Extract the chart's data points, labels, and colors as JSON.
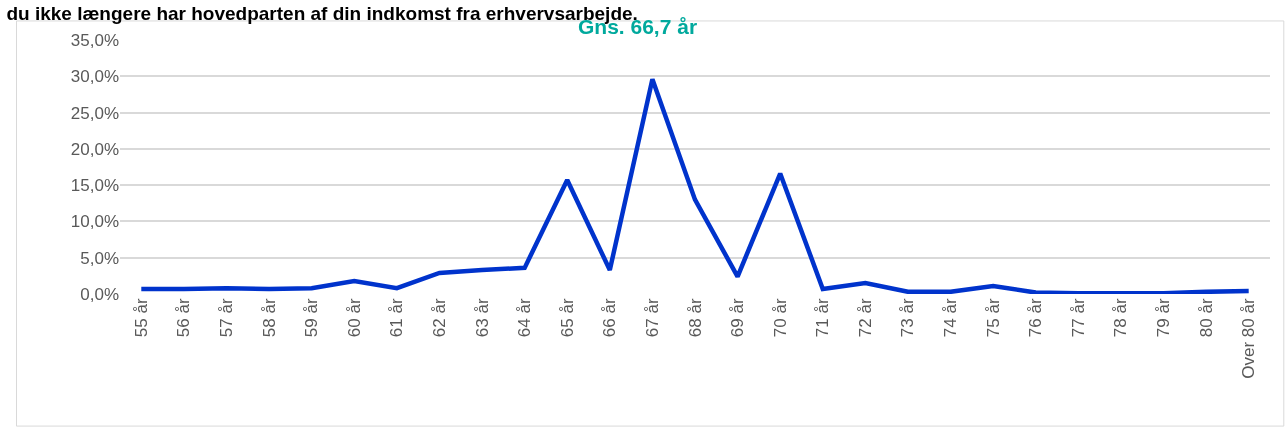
{
  "chart_data": {
    "type": "line",
    "title": "du ikke længere har hovedparten af din indkomst fra erhvervsarbejde.",
    "annotations": [
      "Gns. 66,7 år"
    ],
    "categories": [
      "55 år",
      "56 år",
      "57 år",
      "58 år",
      "59 år",
      "60 år",
      "61 år",
      "62 år",
      "63 år",
      "64 år",
      "65 år",
      "66 år",
      "67 år",
      "68 år",
      "69 år",
      "70 år",
      "71 år",
      "72 år",
      "73 år",
      "74 år",
      "75 år",
      "76 år",
      "77 år",
      "78 år",
      "79 år",
      "80 år",
      "Over 80 år"
    ],
    "series": [
      {
        "color": "#0033cc",
        "values": [
          0.7,
          0.7,
          0.8,
          0.7,
          0.8,
          1.8,
          0.8,
          2.9,
          3.3,
          3.6,
          15.7,
          3.3,
          29.6,
          13.0,
          2.4,
          16.6,
          0.7,
          1.5,
          0.3,
          0.3,
          1.1,
          0.2,
          0.1,
          0.1,
          0.1,
          0.3,
          0.4
        ]
      }
    ],
    "ylim": [
      0,
      35
    ],
    "yticks": [
      {
        "value": 0,
        "label": "0,0%"
      },
      {
        "value": 5,
        "label": "5,0%"
      },
      {
        "value": 10,
        "label": "10,0%"
      },
      {
        "value": 15,
        "label": "15,0%"
      },
      {
        "value": 20,
        "label": "20,0%"
      },
      {
        "value": 25,
        "label": "25,0%"
      },
      {
        "value": 30,
        "label": "30,0%"
      },
      {
        "value": 35,
        "label": "35,0%"
      }
    ],
    "grid": "y",
    "marker": "none",
    "line_style": "solid"
  }
}
